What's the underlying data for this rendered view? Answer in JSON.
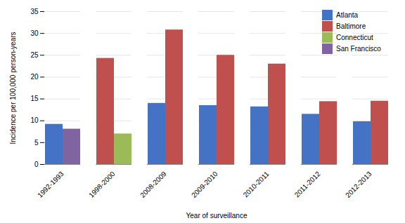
{
  "chart_data": {
    "type": "bar",
    "xlabel": "Year of surveillance",
    "ylabel": "Incidence per 100,000 person-years",
    "categories": [
      "1992-1993",
      "1998-2000",
      "2008-2009",
      "2009-2010",
      "2010-2011",
      "2011-2012",
      "2012-2013"
    ],
    "series": [
      {
        "name": "Atlanta",
        "color": "#4472C4",
        "values": [
          9.2,
          null,
          14.0,
          13.5,
          13.2,
          11.5,
          9.8
        ]
      },
      {
        "name": "Baltimore",
        "color": "#C0504D",
        "values": [
          null,
          24.3,
          30.8,
          25.0,
          23.0,
          14.4,
          14.5
        ]
      },
      {
        "name": "Connecticut",
        "color": "#9BBB59",
        "values": [
          null,
          7.0,
          null,
          null,
          null,
          null,
          null
        ]
      },
      {
        "name": "San Francisco",
        "color": "#8064A2",
        "values": [
          8.1,
          null,
          null,
          null,
          null,
          null,
          null
        ]
      }
    ],
    "ylim": [
      0,
      35
    ],
    "yticks": [
      0,
      5,
      10,
      15,
      20,
      25,
      30,
      35
    ],
    "grid": true,
    "legend": "upper right"
  }
}
